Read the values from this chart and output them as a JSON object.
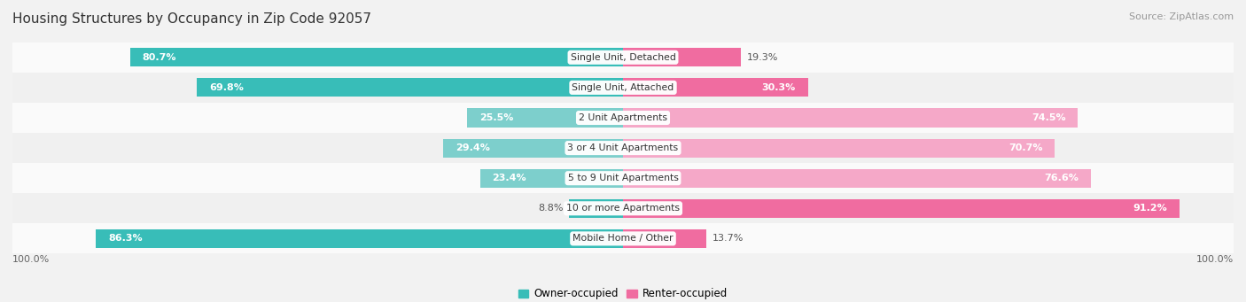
{
  "title": "Housing Structures by Occupancy in Zip Code 92057",
  "source": "Source: ZipAtlas.com",
  "categories": [
    "Single Unit, Detached",
    "Single Unit, Attached",
    "2 Unit Apartments",
    "3 or 4 Unit Apartments",
    "5 to 9 Unit Apartments",
    "10 or more Apartments",
    "Mobile Home / Other"
  ],
  "owner_pct": [
    80.7,
    69.8,
    25.5,
    29.4,
    23.4,
    8.8,
    86.3
  ],
  "renter_pct": [
    19.3,
    30.3,
    74.5,
    70.7,
    76.6,
    91.2,
    13.7
  ],
  "owner_color_dark": "#38BDB8",
  "owner_color_light": "#7DCFCC",
  "renter_color_dark": "#F06CA0",
  "renter_color_light": "#F5A8C8",
  "dark_rows": [
    0,
    1,
    5,
    6
  ],
  "bg_color": "#F2F2F2",
  "row_bg_colors": [
    "#FAFAFA",
    "#F0F0F0",
    "#FAFAFA",
    "#F0F0F0",
    "#FAFAFA",
    "#F0F0F0",
    "#FAFAFA"
  ],
  "title_fontsize": 11,
  "source_fontsize": 8,
  "label_fontsize": 8,
  "cat_fontsize": 7.8,
  "bar_height": 0.62,
  "figsize": [
    14.06,
    3.41
  ]
}
